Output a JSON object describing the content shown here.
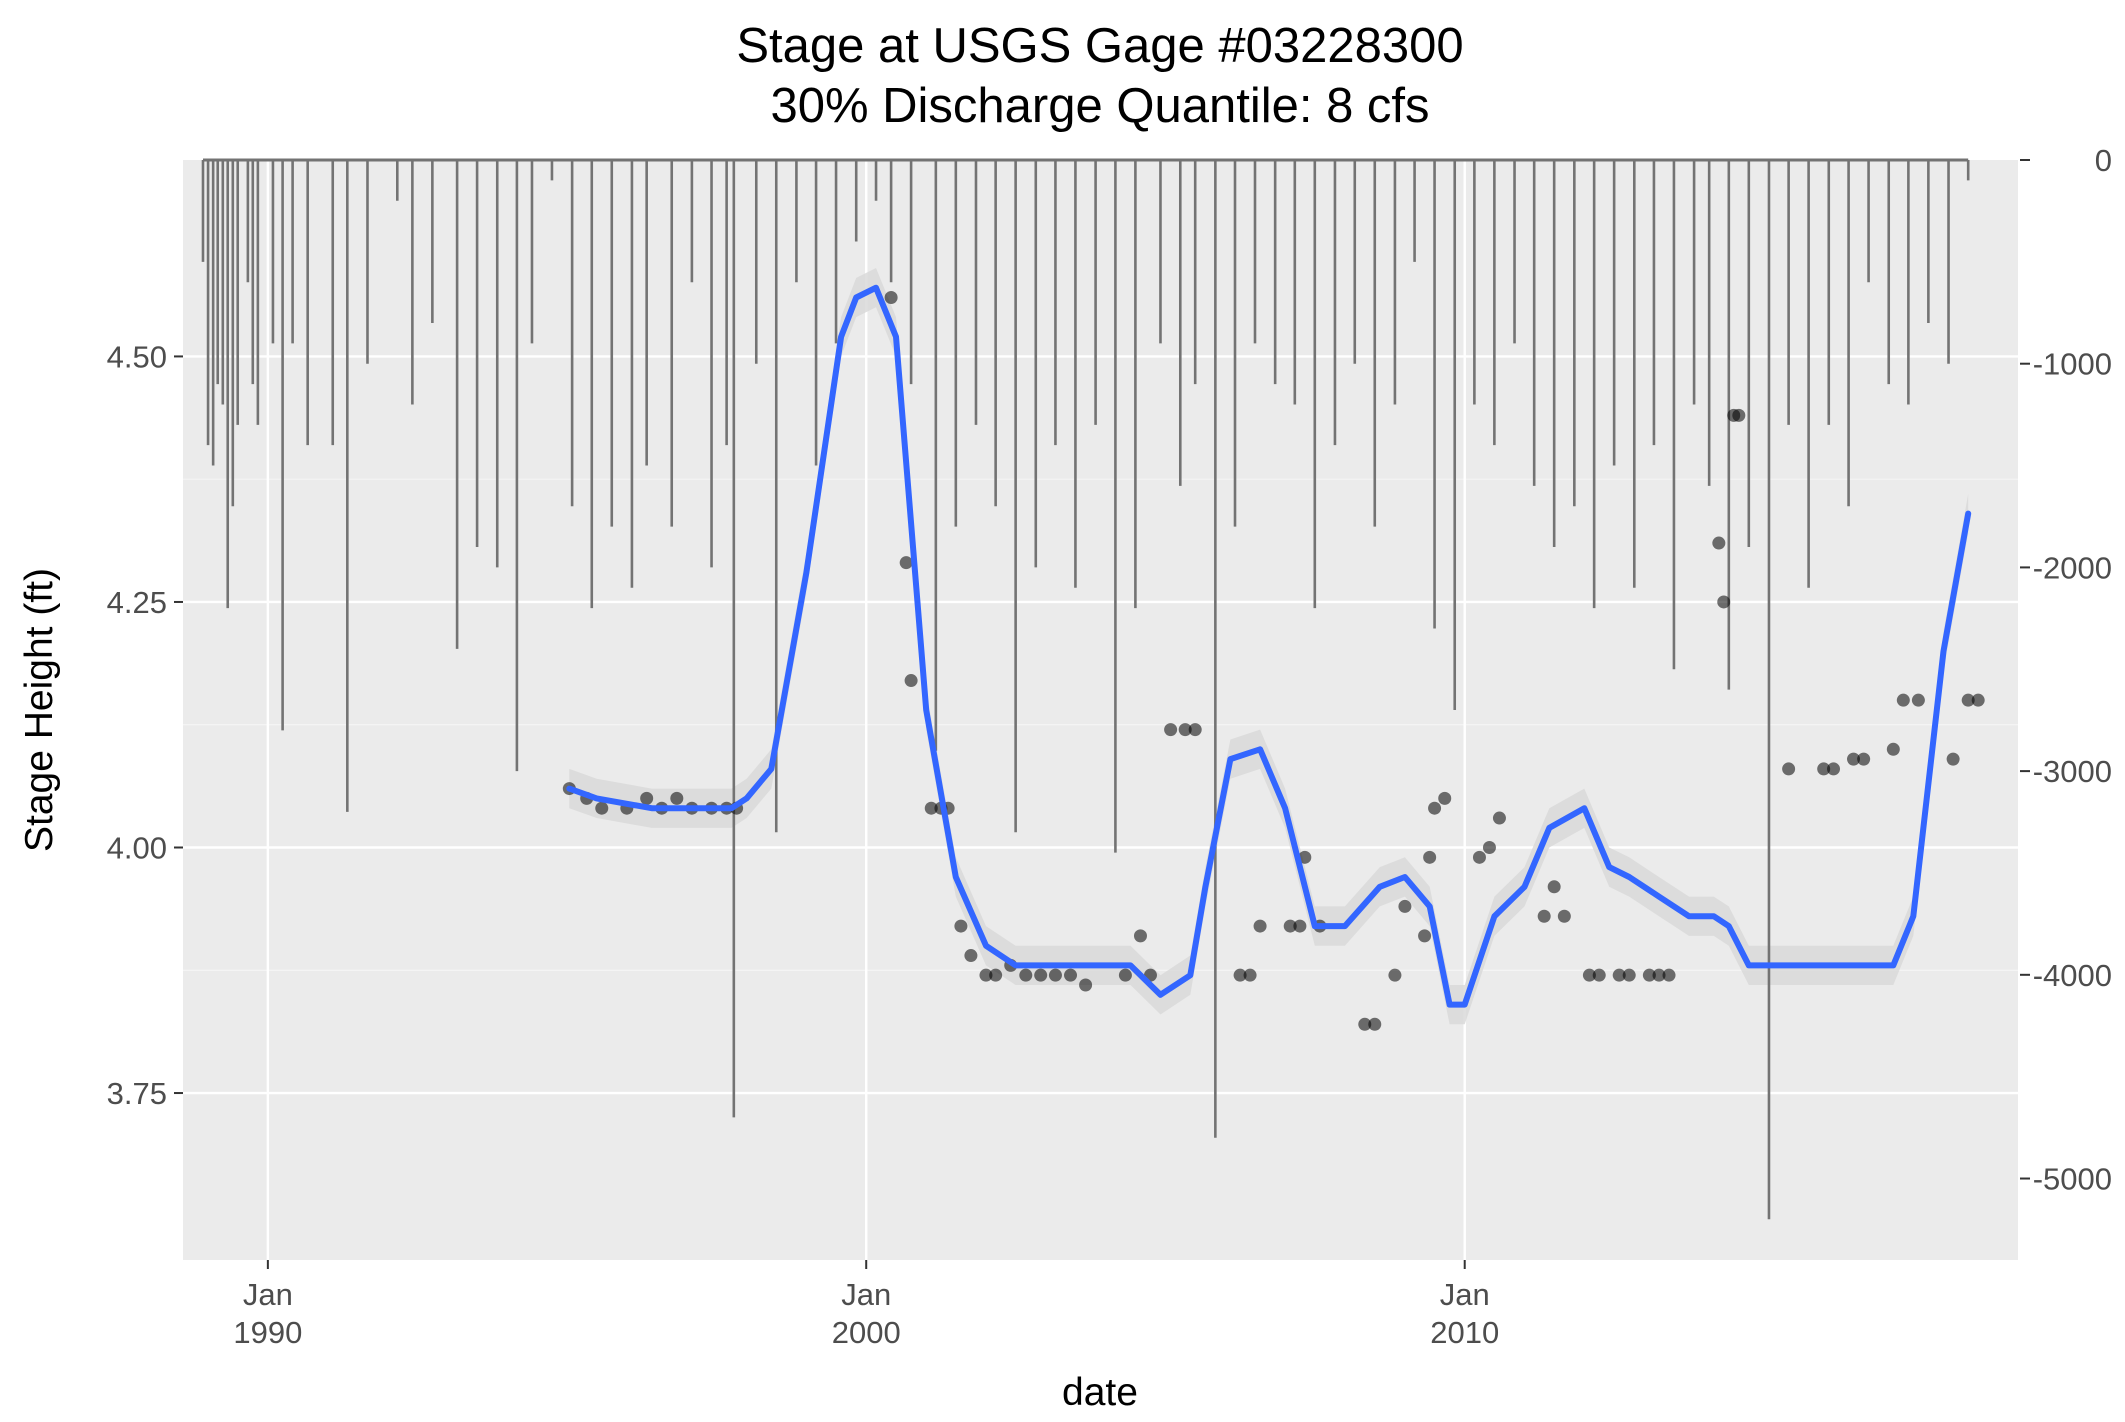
{
  "chart_data": {
    "type": "line",
    "title": "Stage at USGS Gage #03228300",
    "subtitle": "30% Discharge Quantile: 8 cfs",
    "xlabel": "date",
    "ylabel": "Stage Height (ft)",
    "xlim": [
      "1988-08-01",
      "2019-04-01"
    ],
    "ylim": [
      3.58,
      4.7
    ],
    "y2lim": [
      -5400,
      0
    ],
    "grid": true,
    "x_ticks": [
      {
        "date": "1990-01-01",
        "label_month": "Jan",
        "label_year": "1990"
      },
      {
        "date": "2000-01-01",
        "label_month": "Jan",
        "label_year": "2000"
      },
      {
        "date": "2010-01-01",
        "label_month": "Jan",
        "label_year": "2010"
      }
    ],
    "y_ticks": [
      {
        "value": 3.75,
        "label": "3.75"
      },
      {
        "value": 4.0,
        "label": "4.00"
      },
      {
        "value": 4.25,
        "label": "4.25"
      },
      {
        "value": 4.5,
        "label": "4.50"
      }
    ],
    "y2_ticks": [
      {
        "value": 0,
        "label": "0"
      },
      {
        "value": -1000,
        "label": "-1000"
      },
      {
        "value": -2000,
        "label": "-2000"
      },
      {
        "value": -3000,
        "label": "-3000"
      },
      {
        "value": -4000,
        "label": "-4000"
      },
      {
        "value": -5000,
        "label": "-5000"
      }
    ],
    "colors": {
      "panel": "#ebebeb",
      "grid": "#ffffff",
      "smooth": "#3366ff",
      "ribbon": "#d9d9d9",
      "points": "#000000",
      "discharge": "#737373"
    },
    "series": [
      {
        "kind": "smooth",
        "x": [
          "1995-01-15",
          "1995-07-01",
          "1996-06-01",
          "1997-01-01",
          "1997-10-01",
          "1998-01-01",
          "1998-06-01",
          "1999-01-01",
          "1999-08-01",
          "1999-11-01",
          "2000-03-01",
          "2000-07-01",
          "2001-01-01",
          "2001-07-01",
          "2002-01-01",
          "2002-07-01",
          "2003-06-01",
          "2004-01-01",
          "2004-06-01",
          "2004-12-01",
          "2005-06-01",
          "2005-09-01",
          "2006-02-01",
          "2006-08-01",
          "2007-01-01",
          "2007-07-01",
          "2008-01-01",
          "2008-08-01",
          "2009-01-01",
          "2009-06-01",
          "2009-10-01",
          "2010-01-01",
          "2010-07-01",
          "2011-01-01",
          "2011-06-01",
          "2012-01-01",
          "2012-06-01",
          "2012-10-01",
          "2013-04-01",
          "2013-10-01",
          "2014-03-01",
          "2014-06-01",
          "2014-10-01",
          "2015-06-01",
          "2016-01-01",
          "2016-09-01",
          "2017-03-01",
          "2017-07-01",
          "2018-01-01",
          "2018-06-01"
        ],
        "y": [
          4.06,
          4.05,
          4.04,
          4.04,
          4.04,
          4.05,
          4.08,
          4.28,
          4.52,
          4.56,
          4.57,
          4.52,
          4.14,
          3.97,
          3.9,
          3.88,
          3.88,
          3.88,
          3.88,
          3.85,
          3.87,
          3.96,
          4.09,
          4.1,
          4.04,
          3.92,
          3.92,
          3.96,
          3.97,
          3.94,
          3.84,
          3.84,
          3.93,
          3.96,
          4.02,
          4.04,
          3.98,
          3.97,
          3.95,
          3.93,
          3.93,
          3.92,
          3.88,
          3.88,
          3.88,
          3.88,
          3.88,
          3.93,
          4.2,
          4.34
        ]
      },
      {
        "kind": "points",
        "x": [
          "1995-01-15",
          "1995-05-01",
          "1995-08-01",
          "1996-01-01",
          "1996-05-01",
          "1996-08-01",
          "1996-11-01",
          "1997-02-01",
          "1997-06-01",
          "1997-09-01",
          "1997-11-01",
          "2000-06-01",
          "2000-09-01",
          "2000-10-01",
          "2001-02-01",
          "2001-04-01",
          "2001-05-15",
          "2001-08-01",
          "2001-10-01",
          "2002-01-01",
          "2002-03-01",
          "2002-06-01",
          "2002-09-01",
          "2002-12-01",
          "2003-03-01",
          "2003-06-01",
          "2003-09-01",
          "2004-05-01",
          "2004-08-01",
          "2004-10-01",
          "2005-02-01",
          "2005-05-01",
          "2005-07-01",
          "2006-04-01",
          "2006-06-01",
          "2006-08-01",
          "2007-02-01",
          "2007-04-01",
          "2007-05-01",
          "2007-08-01",
          "2008-05-01",
          "2008-07-01",
          "2008-11-01",
          "2009-01-01",
          "2009-05-01",
          "2009-06-01",
          "2009-07-01",
          "2009-09-01",
          "2010-04-01",
          "2010-06-01",
          "2010-08-01",
          "2011-05-01",
          "2011-07-01",
          "2011-09-01",
          "2012-02-01",
          "2012-04-01",
          "2012-08-01",
          "2012-10-01",
          "2013-02-01",
          "2013-04-01",
          "2013-06-01",
          "2014-04-01",
          "2014-05-01",
          "2014-07-01",
          "2014-08-01",
          "2015-06-01",
          "2016-01-01",
          "2016-03-01",
          "2016-07-01",
          "2016-09-01",
          "2017-03-01",
          "2017-05-01",
          "2017-08-01",
          "2018-03-01",
          "2018-06-01",
          "2018-08-01"
        ],
        "y": [
          4.06,
          4.05,
          4.04,
          4.04,
          4.05,
          4.04,
          4.05,
          4.04,
          4.04,
          4.04,
          4.04,
          4.56,
          4.29,
          4.17,
          4.04,
          4.04,
          4.04,
          3.92,
          3.89,
          3.87,
          3.87,
          3.88,
          3.87,
          3.87,
          3.87,
          3.87,
          3.86,
          3.87,
          3.91,
          3.87,
          4.12,
          4.12,
          4.12,
          3.87,
          3.87,
          3.92,
          3.92,
          3.92,
          3.99,
          3.92,
          3.82,
          3.82,
          3.87,
          3.94,
          3.91,
          3.99,
          4.04,
          4.05,
          3.99,
          4.0,
          4.03,
          3.93,
          3.96,
          3.93,
          3.87,
          3.87,
          3.87,
          3.87,
          3.87,
          3.87,
          3.87,
          4.31,
          4.25,
          4.44,
          4.44,
          4.08,
          4.08,
          4.08,
          4.09,
          4.09,
          4.1,
          4.15,
          4.15,
          4.09,
          4.15,
          4.15
        ]
      },
      {
        "kind": "discharge_bars",
        "axis": "right",
        "x": [
          "1988-12-01",
          "1989-01-01",
          "1989-02-01",
          "1989-03-01",
          "1989-04-01",
          "1989-05-01",
          "1989-06-01",
          "1989-07-01",
          "1989-09-01",
          "1989-10-01",
          "1989-11-01",
          "1990-02-01",
          "1990-04-01",
          "1990-06-01",
          "1990-09-01",
          "1991-02-01",
          "1991-05-01",
          "1991-09-01",
          "1992-03-01",
          "1992-06-01",
          "1992-10-01",
          "1993-03-01",
          "1993-07-01",
          "1993-11-01",
          "1994-03-01",
          "1994-06-01",
          "1994-10-01",
          "1995-02-01",
          "1995-06-01",
          "1995-10-01",
          "1996-02-01",
          "1996-05-01",
          "1996-10-01",
          "1997-02-01",
          "1997-06-01",
          "1997-09-01",
          "1997-10-15",
          "1998-03-01",
          "1998-07-01",
          "1998-11-01",
          "1999-03-01",
          "1999-07-01",
          "1999-11-01",
          "2000-03-01",
          "2000-06-01",
          "2000-10-01",
          "2001-03-01",
          "2001-07-01",
          "2001-11-01",
          "2002-03-01",
          "2002-07-01",
          "2002-11-01",
          "2003-03-01",
          "2003-07-01",
          "2003-11-01",
          "2004-03-01",
          "2004-07-01",
          "2004-12-01",
          "2005-04-01",
          "2005-07-01",
          "2005-11-01",
          "2006-03-01",
          "2006-07-01",
          "2006-11-01",
          "2007-03-01",
          "2007-07-01",
          "2007-11-01",
          "2008-03-01",
          "2008-07-01",
          "2008-11-01",
          "2009-03-01",
          "2009-07-01",
          "2009-11-01",
          "2010-03-01",
          "2010-07-01",
          "2010-11-01",
          "2011-03-01",
          "2011-07-01",
          "2011-11-01",
          "2012-03-01",
          "2012-07-01",
          "2012-11-01",
          "2013-03-01",
          "2013-07-01",
          "2013-11-01",
          "2014-02-01",
          "2014-06-01",
          "2014-10-01",
          "2015-02-01",
          "2015-06-01",
          "2015-10-01",
          "2016-02-01",
          "2016-06-01",
          "2016-10-01",
          "2017-02-01",
          "2017-06-01",
          "2017-10-01",
          "2018-02-01",
          "2018-06-01"
        ],
        "y": [
          -500,
          -1400,
          -1500,
          -1100,
          -1200,
          -2200,
          -1700,
          -1300,
          -600,
          -1100,
          -1300,
          -900,
          -2800,
          -900,
          -1400,
          -1400,
          -3200,
          -1000,
          -200,
          -1200,
          -800,
          -2400,
          -1900,
          -2000,
          -3000,
          -900,
          -100,
          -1700,
          -2200,
          -1800,
          -2100,
          -1500,
          -1800,
          -600,
          -2000,
          -1400,
          -4700,
          -1000,
          -3300,
          -600,
          -1500,
          -900,
          -400,
          -200,
          -600,
          -1100,
          -2900,
          -1800,
          -1300,
          -1700,
          -3300,
          -2000,
          -1400,
          -2100,
          -1300,
          -3400,
          -2200,
          -900,
          -1600,
          -1100,
          -4800,
          -1800,
          -900,
          -1100,
          -1200,
          -2200,
          -1400,
          -1000,
          -1800,
          -1200,
          -500,
          -2300,
          -2700,
          -1200,
          -1400,
          -900,
          -1600,
          -1900,
          -1700,
          -2200,
          -1500,
          -2100,
          -1400,
          -2500,
          -1200,
          -1600,
          -2600,
          -1900,
          -5200,
          -1300,
          -2100,
          -1300,
          -1700,
          -600,
          -1100,
          -1200,
          -800,
          -1000,
          -100
        ]
      }
    ]
  }
}
